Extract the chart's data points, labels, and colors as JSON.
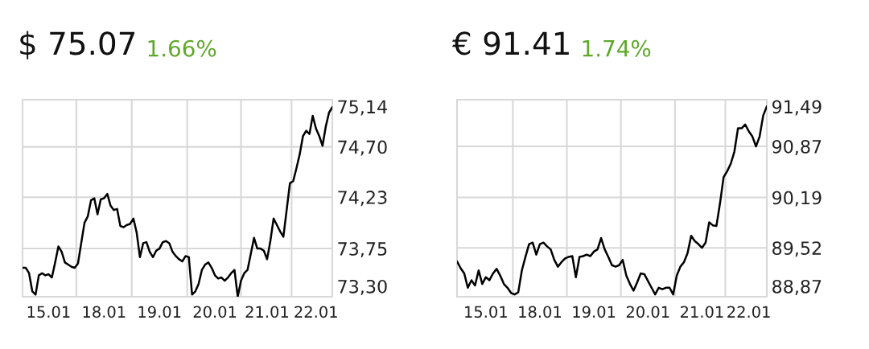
{
  "chart_data": [
    {
      "type": "line",
      "title": "$ 75.07",
      "subtitle": "1.66%",
      "grid": true,
      "legend": false,
      "line_style": "solid",
      "ylim": [
        73.3,
        75.14
      ],
      "categories": [
        null,
        null,
        null,
        null,
        null,
        null,
        null,
        null,
        "15.01",
        null,
        null,
        null,
        null,
        null,
        null,
        null,
        null,
        null,
        null,
        null,
        null,
        null,
        null,
        null,
        null,
        "18.01",
        null,
        null,
        null,
        null,
        null,
        null,
        null,
        null,
        null,
        null,
        null,
        null,
        null,
        null,
        null,
        null,
        "19.01",
        null,
        null,
        null,
        null,
        null,
        null,
        null,
        null,
        null,
        null,
        null,
        null,
        null,
        null,
        null,
        null,
        "20.01",
        null,
        null,
        null,
        null,
        null,
        null,
        null,
        null,
        null,
        null,
        null,
        null,
        null,
        null,
        null,
        "21.01",
        null,
        null,
        null,
        null,
        null,
        null,
        null,
        null,
        null,
        null,
        null,
        null,
        null,
        null,
        "22.01",
        null,
        null,
        null,
        null,
        null
      ],
      "yticks": [
        {
          "value": 73.3,
          "label": "73,30"
        },
        {
          "value": 73.75,
          "label": "73,75"
        },
        {
          "value": 74.23,
          "label": "74,23"
        },
        {
          "value": 74.7,
          "label": "74,70"
        },
        {
          "value": 75.14,
          "label": "75,14"
        }
      ],
      "series": [
        {
          "color": "#000000",
          "values": [
            73.57,
            73.57,
            73.52,
            73.35,
            73.32,
            73.5,
            73.52,
            73.5,
            73.51,
            73.48,
            73.62,
            73.77,
            73.72,
            73.62,
            73.6,
            73.58,
            73.57,
            73.61,
            73.8,
            73.99,
            74.05,
            74.2,
            74.22,
            74.07,
            74.21,
            74.22,
            74.26,
            74.15,
            74.11,
            74.12,
            73.96,
            73.95,
            73.97,
            73.98,
            74.03,
            73.9,
            73.67,
            73.8,
            73.81,
            73.72,
            73.67,
            73.73,
            73.75,
            73.81,
            73.82,
            73.8,
            73.72,
            73.68,
            73.65,
            73.63,
            73.68,
            73.67,
            73.32,
            73.35,
            73.42,
            73.55,
            73.6,
            73.62,
            73.57,
            73.5,
            73.47,
            73.48,
            73.45,
            73.48,
            73.52,
            73.55,
            73.3,
            73.45,
            73.52,
            73.55,
            73.7,
            73.85,
            73.75,
            73.75,
            73.73,
            73.65,
            73.82,
            74.03,
            73.97,
            73.91,
            73.86,
            74.11,
            74.36,
            74.38,
            74.5,
            74.63,
            74.8,
            74.85,
            74.82,
            74.99,
            74.87,
            74.8,
            74.71,
            74.89,
            75.02,
            75.07
          ]
        }
      ]
    },
    {
      "type": "line",
      "title": "€ 91.41",
      "subtitle": "1.74%",
      "grid": true,
      "legend": false,
      "line_style": "solid",
      "ylim": [
        88.87,
        91.49
      ],
      "categories": [
        null,
        null,
        null,
        null,
        null,
        null,
        null,
        null,
        "15.01",
        null,
        null,
        null,
        null,
        null,
        null,
        null,
        null,
        null,
        null,
        null,
        null,
        null,
        null,
        "18.01",
        null,
        null,
        null,
        null,
        null,
        null,
        null,
        null,
        null,
        null,
        null,
        null,
        null,
        null,
        "19.01",
        null,
        null,
        null,
        null,
        null,
        null,
        null,
        null,
        null,
        null,
        null,
        null,
        null,
        null,
        "20.01",
        null,
        null,
        null,
        null,
        null,
        null,
        null,
        null,
        null,
        null,
        null,
        null,
        null,
        null,
        "21.01",
        null,
        null,
        null,
        null,
        null,
        null,
        null,
        null,
        null,
        null,
        null,
        null,
        "22.01",
        null,
        null,
        null,
        null,
        null
      ],
      "yticks": [
        {
          "value": 88.87,
          "label": "88,87"
        },
        {
          "value": 89.52,
          "label": "89,52"
        },
        {
          "value": 90.19,
          "label": "90,19"
        },
        {
          "value": 90.87,
          "label": "90,87"
        },
        {
          "value": 91.49,
          "label": "91,49"
        }
      ],
      "series": [
        {
          "color": "#000000",
          "values": [
            89.34,
            89.25,
            89.18,
            88.99,
            89.09,
            89.02,
            89.22,
            89.04,
            89.13,
            89.09,
            89.18,
            89.24,
            89.15,
            89.04,
            88.99,
            88.92,
            88.9,
            88.93,
            89.22,
            89.4,
            89.57,
            89.59,
            89.43,
            89.57,
            89.59,
            89.54,
            89.5,
            89.36,
            89.27,
            89.33,
            89.38,
            89.4,
            89.41,
            89.13,
            89.4,
            89.41,
            89.43,
            89.41,
            89.47,
            89.5,
            89.65,
            89.5,
            89.4,
            89.29,
            89.27,
            89.29,
            89.36,
            89.15,
            89.04,
            88.95,
            89.06,
            89.18,
            89.17,
            89.08,
            88.99,
            88.9,
            88.99,
            88.97,
            88.99,
            88.99,
            88.9,
            89.15,
            89.27,
            89.33,
            89.45,
            89.68,
            89.61,
            89.57,
            89.52,
            89.59,
            89.86,
            89.82,
            89.81,
            90.11,
            90.46,
            90.54,
            90.64,
            90.8,
            91.11,
            91.11,
            91.16,
            91.07,
            91.0,
            90.87,
            91.0,
            91.28,
            91.4
          ]
        }
      ]
    }
  ]
}
